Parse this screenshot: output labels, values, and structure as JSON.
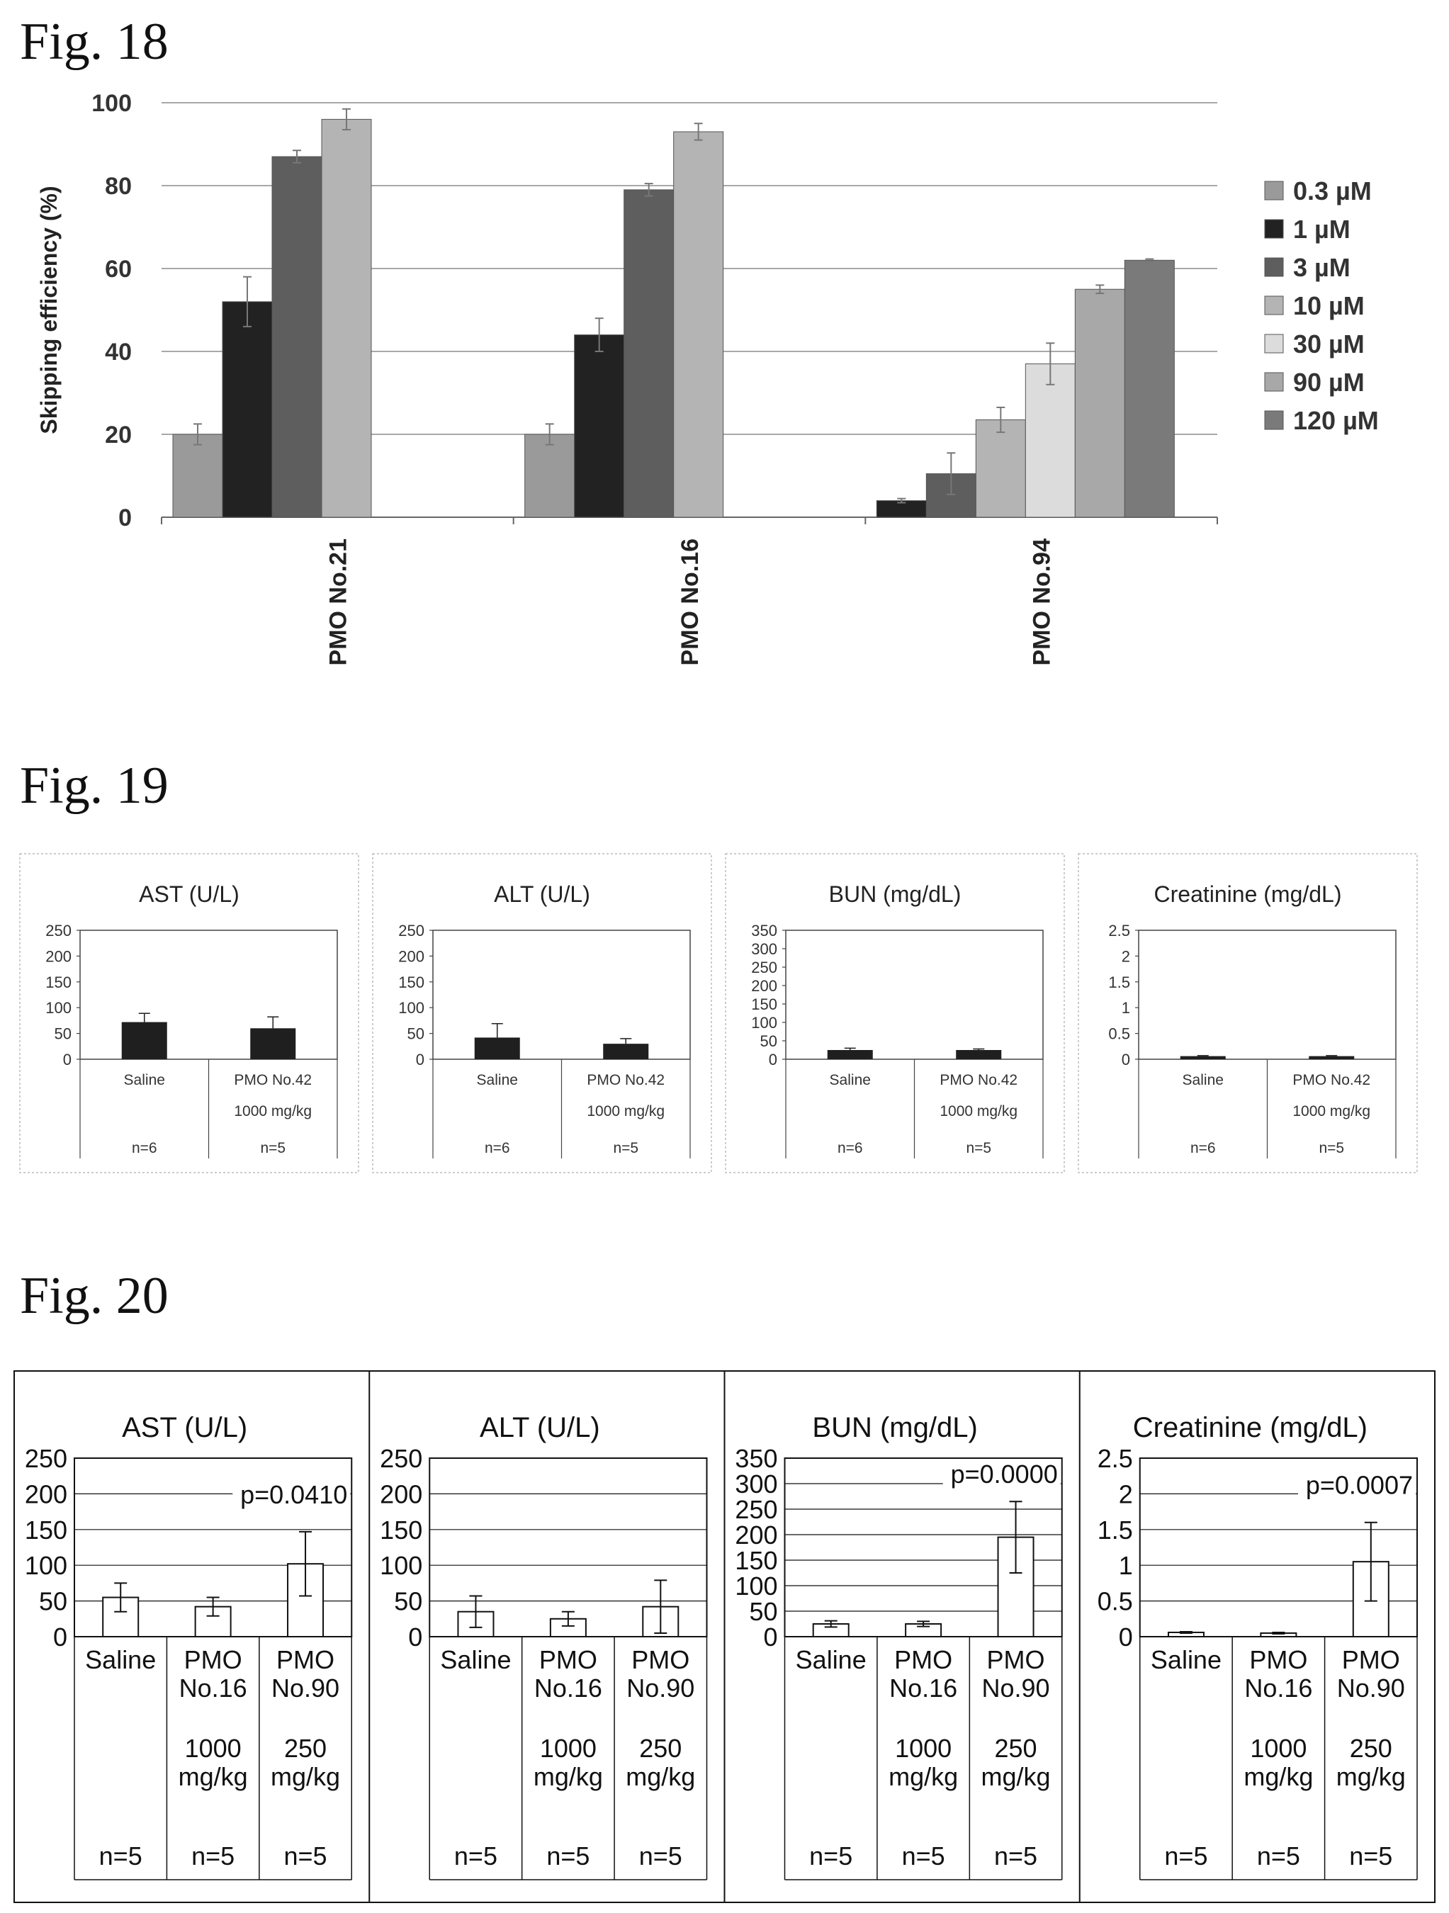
{
  "figures": {
    "fig18": "Fig. 18",
    "fig19": "Fig. 19",
    "fig20": "Fig. 20"
  },
  "chart_data": [
    {
      "id": "fig18",
      "type": "bar",
      "ylabel": "Skipping efficiency (%)",
      "ylim": [
        0,
        100
      ],
      "yticks": [
        0,
        20,
        40,
        60,
        80,
        100
      ],
      "grid": true,
      "legend_position": "right",
      "categories": [
        "PMO No.21",
        "PMO No.16",
        "PMO No.94"
      ],
      "series": [
        {
          "name": "0.3 µM",
          "color": "#9a9a9a",
          "values": [
            20,
            20,
            null
          ],
          "errors": [
            2.5,
            2.5,
            null
          ]
        },
        {
          "name": "1 µM",
          "color": "#222222",
          "values": [
            52,
            44,
            4
          ],
          "errors": [
            6,
            4,
            0.5
          ]
        },
        {
          "name": "3 µM",
          "color": "#5e5e5e",
          "values": [
            87,
            79,
            10.5
          ],
          "errors": [
            1.5,
            1.5,
            5
          ]
        },
        {
          "name": "10 µM",
          "color": "#b4b4b4",
          "values": [
            96,
            93,
            23.5
          ],
          "errors": [
            2.5,
            2,
            3
          ]
        },
        {
          "name": "30 µM",
          "color": "#dcdcdc",
          "values": [
            null,
            null,
            37
          ],
          "errors": [
            null,
            null,
            5
          ]
        },
        {
          "name": "90 µM",
          "color": "#a8a8a8",
          "values": [
            null,
            null,
            55
          ],
          "errors": [
            null,
            null,
            1
          ]
        },
        {
          "name": "120 µM",
          "color": "#7a7a7a",
          "values": [
            null,
            null,
            62
          ],
          "errors": [
            null,
            null,
            0.3
          ]
        }
      ]
    },
    {
      "id": "fig19",
      "type": "bar",
      "panels": [
        {
          "title": "AST (U/L)",
          "ylim": [
            0,
            250
          ],
          "yticks": [
            "0",
            "50",
            "100",
            "150",
            "200",
            "250"
          ],
          "groups": [
            {
              "label": [
                "Saline",
                ""
              ],
              "n": "n=6",
              "value": 72,
              "error": 17
            },
            {
              "label": [
                "PMO No.42",
                "1000 mg/kg"
              ],
              "n": "n=5",
              "value": 60,
              "error": 22
            }
          ]
        },
        {
          "title": "ALT (U/L)",
          "ylim": [
            0,
            250
          ],
          "yticks": [
            "0",
            "50",
            "100",
            "150",
            "200",
            "250"
          ],
          "groups": [
            {
              "label": [
                "Saline",
                ""
              ],
              "n": "n=6",
              "value": 42,
              "error": 27
            },
            {
              "label": [
                "PMO No.42",
                "1000 mg/kg"
              ],
              "n": "n=5",
              "value": 30,
              "error": 10
            }
          ]
        },
        {
          "title": "BUN (mg/dL)",
          "ylim": [
            0,
            350
          ],
          "yticks": [
            "0",
            "50",
            "100",
            "150",
            "200",
            "250",
            "300",
            "350"
          ],
          "groups": [
            {
              "label": [
                "Saline",
                ""
              ],
              "n": "n=6",
              "value": 25,
              "error": 5
            },
            {
              "label": [
                "PMO No.42",
                "1000 mg/kg"
              ],
              "n": "n=5",
              "value": 25,
              "error": 3
            }
          ]
        },
        {
          "title": "Creatinine (mg/dL)",
          "ylim": [
            0,
            2.5
          ],
          "yticks": [
            "0",
            "0.5",
            "1",
            "1.5",
            "2",
            "2.5"
          ],
          "groups": [
            {
              "label": [
                "Saline",
                ""
              ],
              "n": "n=6",
              "value": 0.06,
              "error": 0.01
            },
            {
              "label": [
                "PMO No.42",
                "1000 mg/kg"
              ],
              "n": "n=5",
              "value": 0.06,
              "error": 0.01
            }
          ]
        }
      ]
    },
    {
      "id": "fig20",
      "type": "bar",
      "panels": [
        {
          "title": "AST (U/L)",
          "ylim": [
            0,
            250
          ],
          "yticks": [
            "0",
            "50",
            "100",
            "150",
            "200",
            "250"
          ],
          "p": "p=0.0410",
          "groups": [
            {
              "label": [
                "Saline"
              ],
              "dose": [],
              "n": "n=5",
              "value": 55,
              "error": 20
            },
            {
              "label": [
                "PMO",
                "No.16"
              ],
              "dose": [
                "1000",
                "mg/kg"
              ],
              "n": "n=5",
              "value": 42,
              "error": 13
            },
            {
              "label": [
                "PMO",
                "No.90"
              ],
              "dose": [
                "250",
                "mg/kg"
              ],
              "n": "n=5",
              "value": 102,
              "error": 45
            }
          ]
        },
        {
          "title": "ALT (U/L)",
          "ylim": [
            0,
            250
          ],
          "yticks": [
            "0",
            "50",
            "100",
            "150",
            "200",
            "250"
          ],
          "p": "",
          "groups": [
            {
              "label": [
                "Saline"
              ],
              "dose": [],
              "n": "n=5",
              "value": 35,
              "error": 22
            },
            {
              "label": [
                "PMO",
                "No.16"
              ],
              "dose": [
                "1000",
                "mg/kg"
              ],
              "n": "n=5",
              "value": 25,
              "error": 10
            },
            {
              "label": [
                "PMO",
                "No.90"
              ],
              "dose": [
                "250",
                "mg/kg"
              ],
              "n": "n=5",
              "value": 42,
              "error": 37
            }
          ]
        },
        {
          "title": "BUN (mg/dL)",
          "ylim": [
            0,
            350
          ],
          "yticks": [
            "0",
            "50",
            "100",
            "150",
            "200",
            "250",
            "300",
            "350"
          ],
          "p": "p=0.0000",
          "groups": [
            {
              "label": [
                "Saline"
              ],
              "dose": [],
              "n": "n=5",
              "value": 25,
              "error": 6
            },
            {
              "label": [
                "PMO",
                "No.16"
              ],
              "dose": [
                "1000",
                "mg/kg"
              ],
              "n": "n=5",
              "value": 25,
              "error": 5
            },
            {
              "label": [
                "PMO",
                "No.90"
              ],
              "dose": [
                "250",
                "mg/kg"
              ],
              "n": "n=5",
              "value": 195,
              "error": 70
            }
          ]
        },
        {
          "title": "Creatinine (mg/dL)",
          "ylim": [
            0,
            2.5
          ],
          "yticks": [
            "0",
            "0.5",
            "1",
            "1.5",
            "2",
            "2.5"
          ],
          "p": "p=0.0007",
          "groups": [
            {
              "label": [
                "Saline"
              ],
              "dose": [],
              "n": "n=5",
              "value": 0.06,
              "error": 0.01
            },
            {
              "label": [
                "PMO",
                "No.16"
              ],
              "dose": [
                "1000",
                "mg/kg"
              ],
              "n": "n=5",
              "value": 0.05,
              "error": 0.01
            },
            {
              "label": [
                "PMO",
                "No.90"
              ],
              "dose": [
                "250",
                "mg/kg"
              ],
              "n": "n=5",
              "value": 1.05,
              "error": 0.55
            }
          ]
        }
      ]
    }
  ]
}
